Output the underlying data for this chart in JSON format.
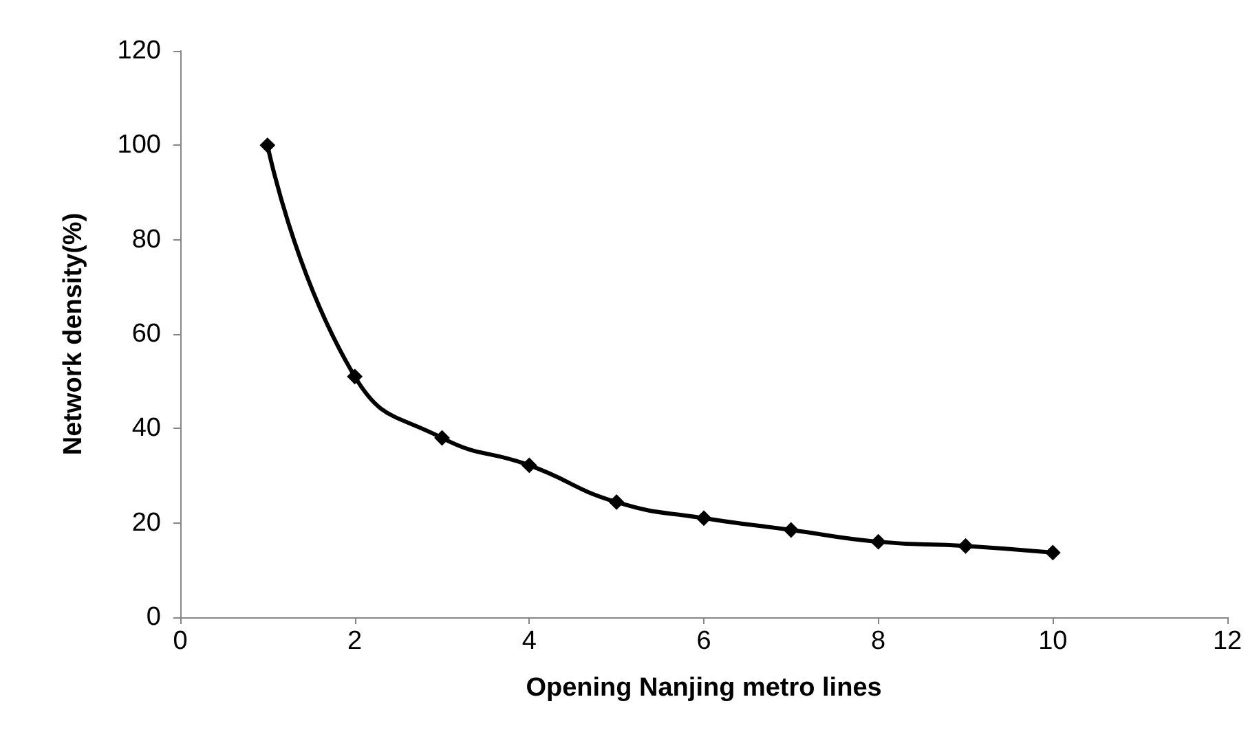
{
  "chart_data": {
    "type": "line",
    "xlabel": "Opening Nanjing metro lines",
    "ylabel": "Network density(%)",
    "x": [
      1,
      2,
      3,
      4,
      5,
      6,
      7,
      8,
      9,
      10
    ],
    "series": [
      {
        "color": "#000000",
        "values": [
          100,
          51,
          38,
          32.2,
          24.4,
          21,
          18.5,
          16,
          15.1,
          13.7
        ]
      }
    ],
    "xlim": [
      0,
      12
    ],
    "xticks": [
      0,
      2,
      4,
      6,
      8,
      10,
      12
    ],
    "ylim": [
      0,
      120
    ],
    "yticks": [
      0,
      20,
      40,
      60,
      80,
      100,
      120
    ],
    "grid": false,
    "marker": "diamond",
    "line_style": "solid"
  }
}
